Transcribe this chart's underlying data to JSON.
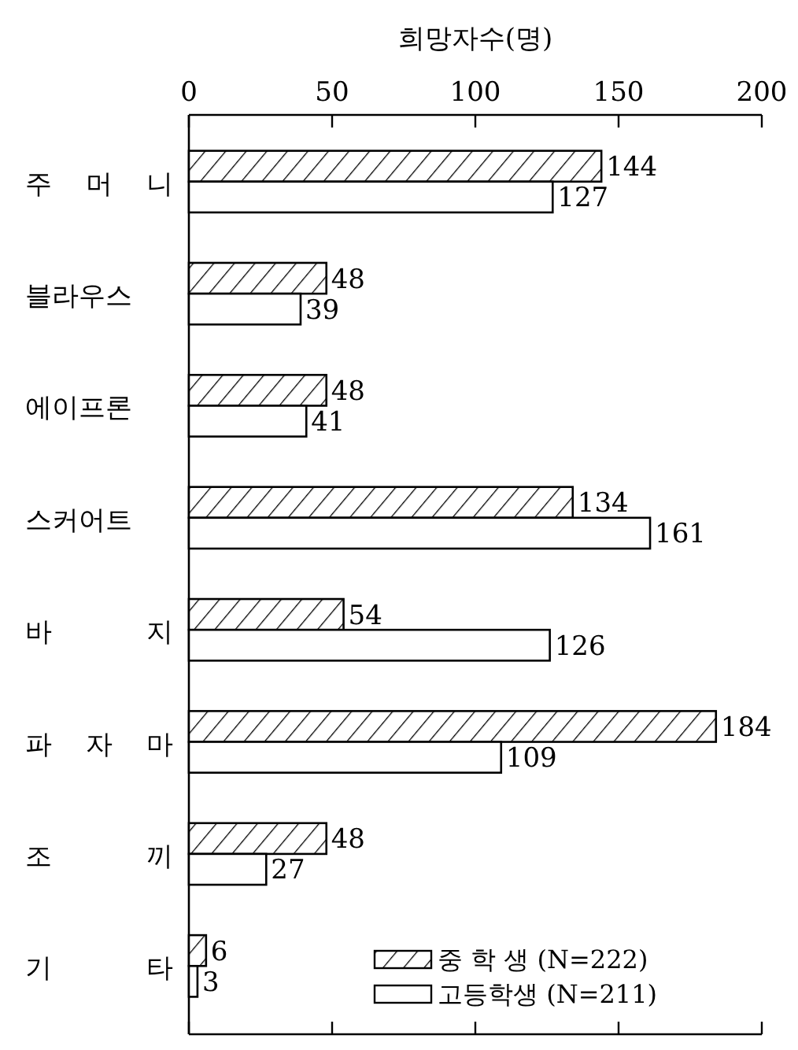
{
  "chart_data": {
    "type": "bar",
    "orientation": "horizontal",
    "xlabel": "희망자수(명)",
    "categories": [
      "주 머 니",
      "블라우스",
      "에이프론",
      "스커어트",
      "바 지",
      "파 자 마",
      "조 끼",
      "기 타"
    ],
    "series": [
      {
        "name": "중 학 생 (N=222)",
        "color": "#000000",
        "values": [
          144,
          48,
          48,
          134,
          54,
          184,
          48,
          6
        ]
      },
      {
        "name": "고등학생 (N=211)",
        "color": "#ffffff",
        "values": [
          127,
          39,
          41,
          161,
          126,
          109,
          27,
          3
        ]
      }
    ],
    "xlim": [
      0,
      200
    ],
    "xticks": [
      0,
      50,
      100,
      150,
      200
    ],
    "data_labels": true,
    "legend": "bottom right"
  }
}
